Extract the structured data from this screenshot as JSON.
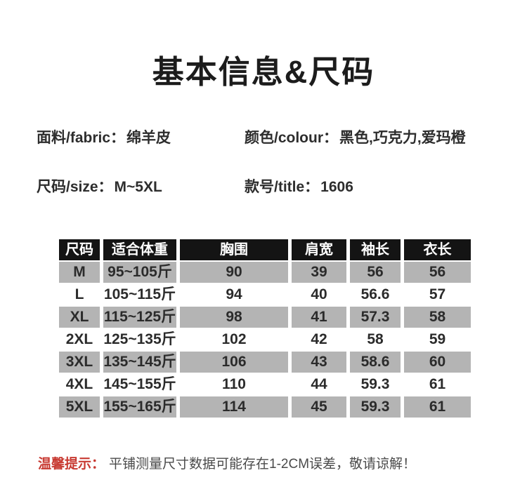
{
  "page": {
    "title": "基本信息&尺码"
  },
  "info": {
    "fabric_label": "面料/fabric：",
    "fabric_value": "绵羊皮",
    "colour_label": "颜色/colour：",
    "colour_value": "黑色,巧克力,爱玛橙",
    "size_label": "尺码/size：",
    "size_value": "M~5XL",
    "style_label": "款号/title：",
    "style_value": "1606"
  },
  "size_table": {
    "headers": [
      "尺码",
      "适合体重",
      "胸围",
      "肩宽",
      "袖长",
      "衣长"
    ],
    "rows": [
      [
        "M",
        "95~105斤",
        "90",
        "39",
        "56",
        "56"
      ],
      [
        "L",
        "105~115斤",
        "94",
        "40",
        "56.6",
        "57"
      ],
      [
        "XL",
        "115~125斤",
        "98",
        "41",
        "57.3",
        "58"
      ],
      [
        "2XL",
        "125~135斤",
        "102",
        "42",
        "58",
        "59"
      ],
      [
        "3XL",
        "135~145斤",
        "106",
        "43",
        "58.6",
        "60"
      ],
      [
        "4XL",
        "145~155斤",
        "110",
        "44",
        "59.3",
        "61"
      ],
      [
        "5XL",
        "155~165斤",
        "114",
        "45",
        "59.3",
        "61"
      ]
    ]
  },
  "note": {
    "prefix": "温馨提示：",
    "text": "平铺测量尺寸数据可能存在1-2CM误差，敬请谅解！"
  },
  "colors": {
    "title_color": "#1c1c1c",
    "text_dark": "#2d2d2d",
    "header_bg": "#141414",
    "row_gray": "#b4b4b4",
    "note_red": "#c83a32"
  }
}
